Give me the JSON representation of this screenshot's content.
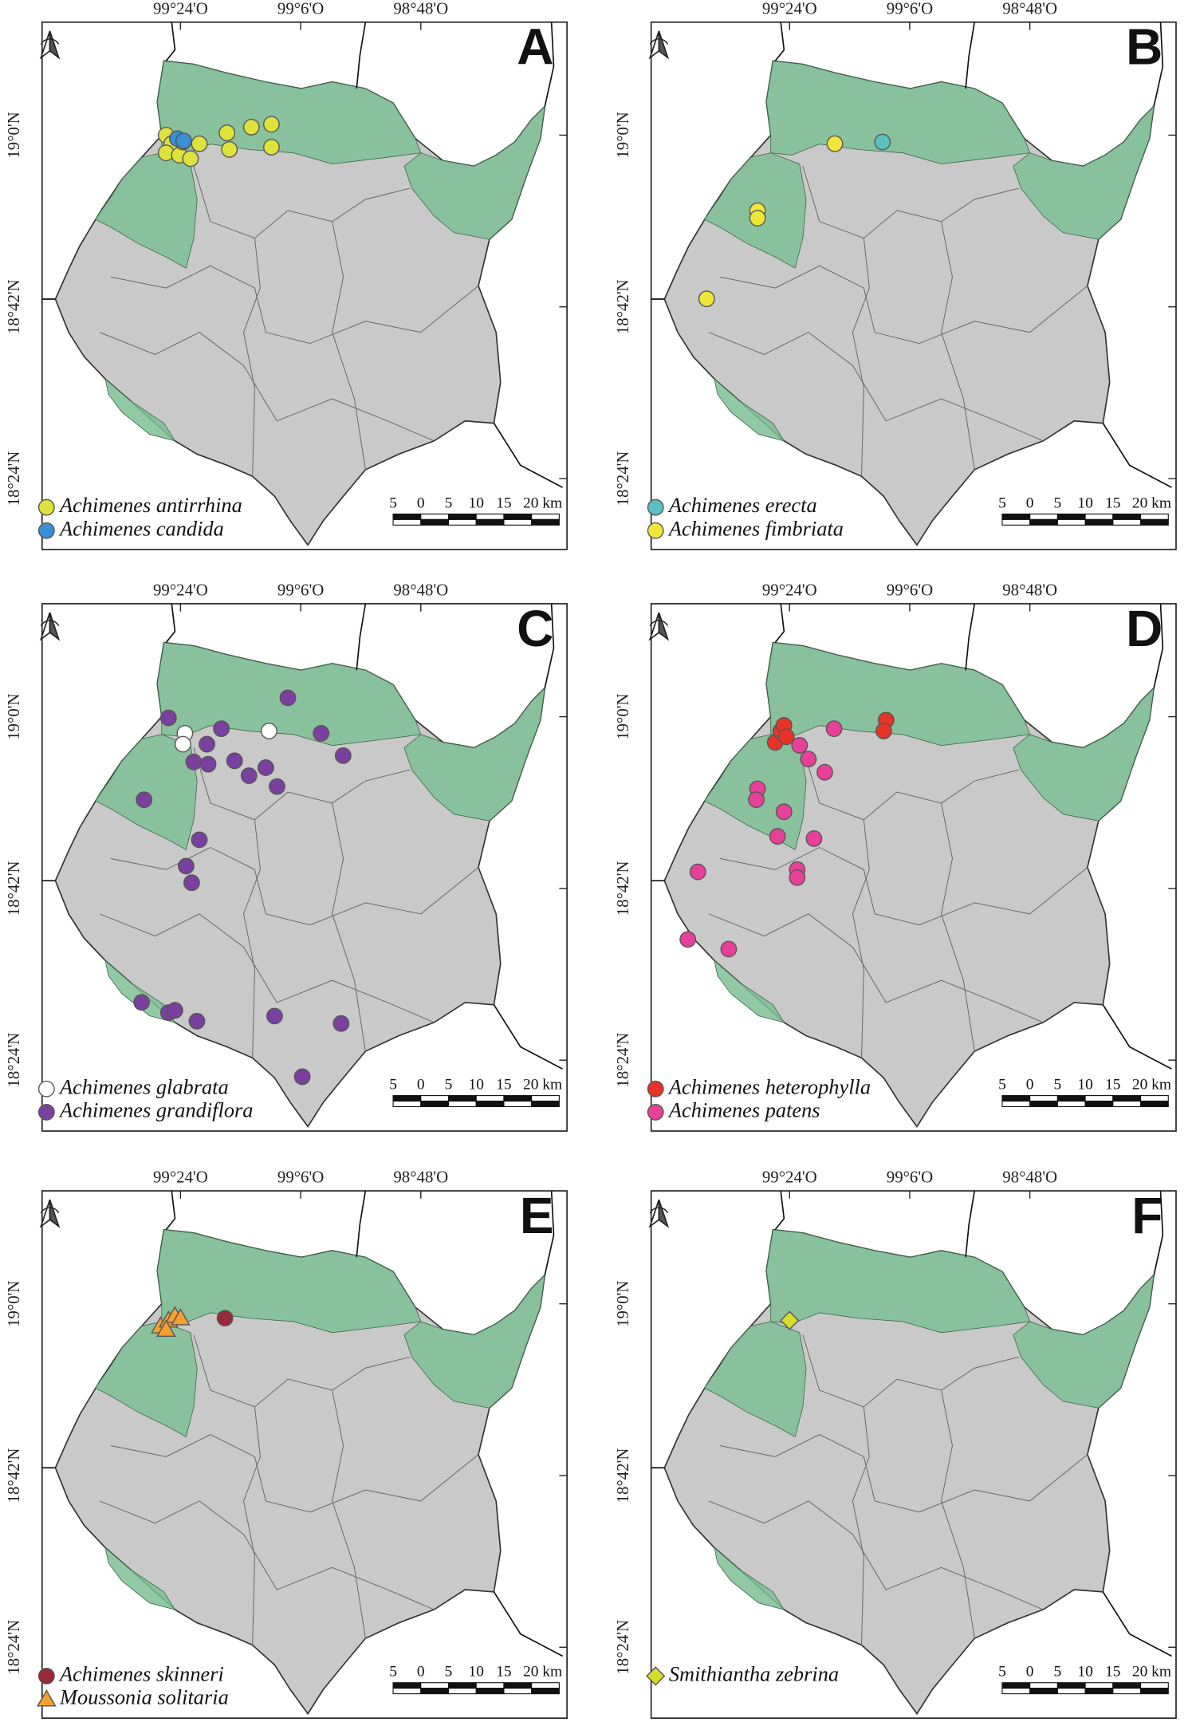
{
  "map": {
    "x_ticks": [
      {
        "value": -99.4,
        "label": "99°24'O"
      },
      {
        "value": -99.1,
        "label": "99°6'O"
      },
      {
        "value": -98.8,
        "label": "98°48'O"
      }
    ],
    "y_ticks": [
      {
        "value": 19.0,
        "label": "19°0'N"
      },
      {
        "value": 18.7,
        "label": "18°42'N"
      },
      {
        "value": 18.4,
        "label": "18°24'N"
      }
    ],
    "scale_bar": [
      "5",
      "0",
      "5",
      "10",
      "15",
      "20 km"
    ],
    "panels": [
      {
        "label": "A",
        "series": [
          {
            "name": "Achimenes antirrhina",
            "color": "#e0e23c",
            "marker": "circle",
            "lon": [
              -99.436,
              -99.422,
              -99.436,
              -99.403,
              -99.375,
              -99.394,
              -99.353,
              -99.284,
              -99.278,
              -99.223,
              -99.173,
              -99.173
            ],
            "lat": [
              19.0,
              18.985,
              18.969,
              18.965,
              18.959,
              18.988,
              18.985,
              19.004,
              18.975,
              19.014,
              19.019,
              18.979
            ]
          },
          {
            "name": "Achimenes candida",
            "color": "#3a8fd6",
            "marker": "circle",
            "lon": [
              -99.408,
              -99.392
            ],
            "lat": [
              18.994,
              18.99
            ]
          }
        ]
      },
      {
        "label": "B",
        "series": [
          {
            "name": "Achimenes erecta",
            "color": "#5bc0c0",
            "marker": "circle",
            "lon": [
              -99.168
            ],
            "lat": [
              18.988
            ]
          },
          {
            "name": "Achimenes fimbriata",
            "color": "#f0e63a",
            "marker": "circle",
            "lon": [
              -99.287,
              -99.48,
              -99.48,
              -99.607
            ],
            "lat": [
              18.985,
              18.868,
              18.855,
              18.714
            ]
          }
        ]
      },
      {
        "label": "C",
        "series": [
          {
            "name": "Achimenes glabrata",
            "color": "#ffffff",
            "marker": "circle",
            "lon": [
              -99.389,
              -99.394,
              -99.179
            ],
            "lat": [
              18.971,
              18.952,
              18.975
            ]
          },
          {
            "name": "Achimenes grandiflora",
            "color": "#7b3fa0",
            "marker": "circle",
            "lon": [
              -99.43,
              -99.298,
              -99.132,
              -99.049,
              -98.994,
              -99.334,
              -99.367,
              -99.331,
              -99.265,
              -99.229,
              -99.187,
              -99.159,
              -99.491,
              -99.353,
              -99.386,
              -99.372,
              -99.497,
              -99.43,
              -99.414,
              -99.359,
              -99.165,
              -98.999,
              -99.096
            ],
            "lat": [
              18.998,
              18.979,
              19.033,
              18.971,
              18.932,
              18.952,
              18.921,
              18.917,
              18.923,
              18.897,
              18.911,
              18.878,
              18.855,
              18.785,
              18.739,
              18.71,
              18.501,
              18.483,
              18.487,
              18.468,
              18.477,
              18.464,
              18.371
            ]
          }
        ]
      },
      {
        "label": "D",
        "series": [
          {
            "name": "Achimenes heterophylla",
            "color": "#e8332a",
            "marker": "circle",
            "lon": [
              -99.436,
              -99.422,
              -99.414,
              -99.408,
              -99.159,
              -99.165
            ],
            "lat": [
              18.955,
              18.975,
              18.985,
              18.965,
              18.994,
              18.975
            ]
          },
          {
            "name": "Achimenes patens",
            "color": "#e6409a",
            "marker": "circle",
            "lon": [
              -99.289,
              -99.375,
              -99.353,
              -99.312,
              -99.48,
              -99.483,
              -99.414,
              -99.43,
              -99.339,
              -99.381,
              -99.381,
              -99.629,
              -99.654,
              -99.552
            ],
            "lat": [
              18.979,
              18.95,
              18.926,
              18.903,
              18.874,
              18.855,
              18.834,
              18.791,
              18.787,
              18.733,
              18.719,
              18.729,
              18.611,
              18.594
            ]
          }
        ]
      },
      {
        "label": "E",
        "series": [
          {
            "name": "Achimenes skinneri",
            "color": "#9a2a3a",
            "marker": "circle",
            "lon": [
              -99.289
            ],
            "lat": [
              18.975
            ]
          },
          {
            "name": "Moussonia solitaria",
            "color": "#f5a030",
            "marker": "triangle",
            "lon": [
              -99.45,
              -99.43,
              -99.414,
              -99.4,
              -99.436
            ],
            "lat": [
              18.961,
              18.971,
              18.979,
              18.975,
              18.955
            ]
          }
        ]
      },
      {
        "label": "F",
        "series": [
          {
            "name": "Smithiantha zebrina",
            "color": "#d8dc2a",
            "marker": "diamond",
            "lon": [
              -99.4
            ],
            "lat": [
              18.971
            ]
          }
        ]
      }
    ]
  }
}
